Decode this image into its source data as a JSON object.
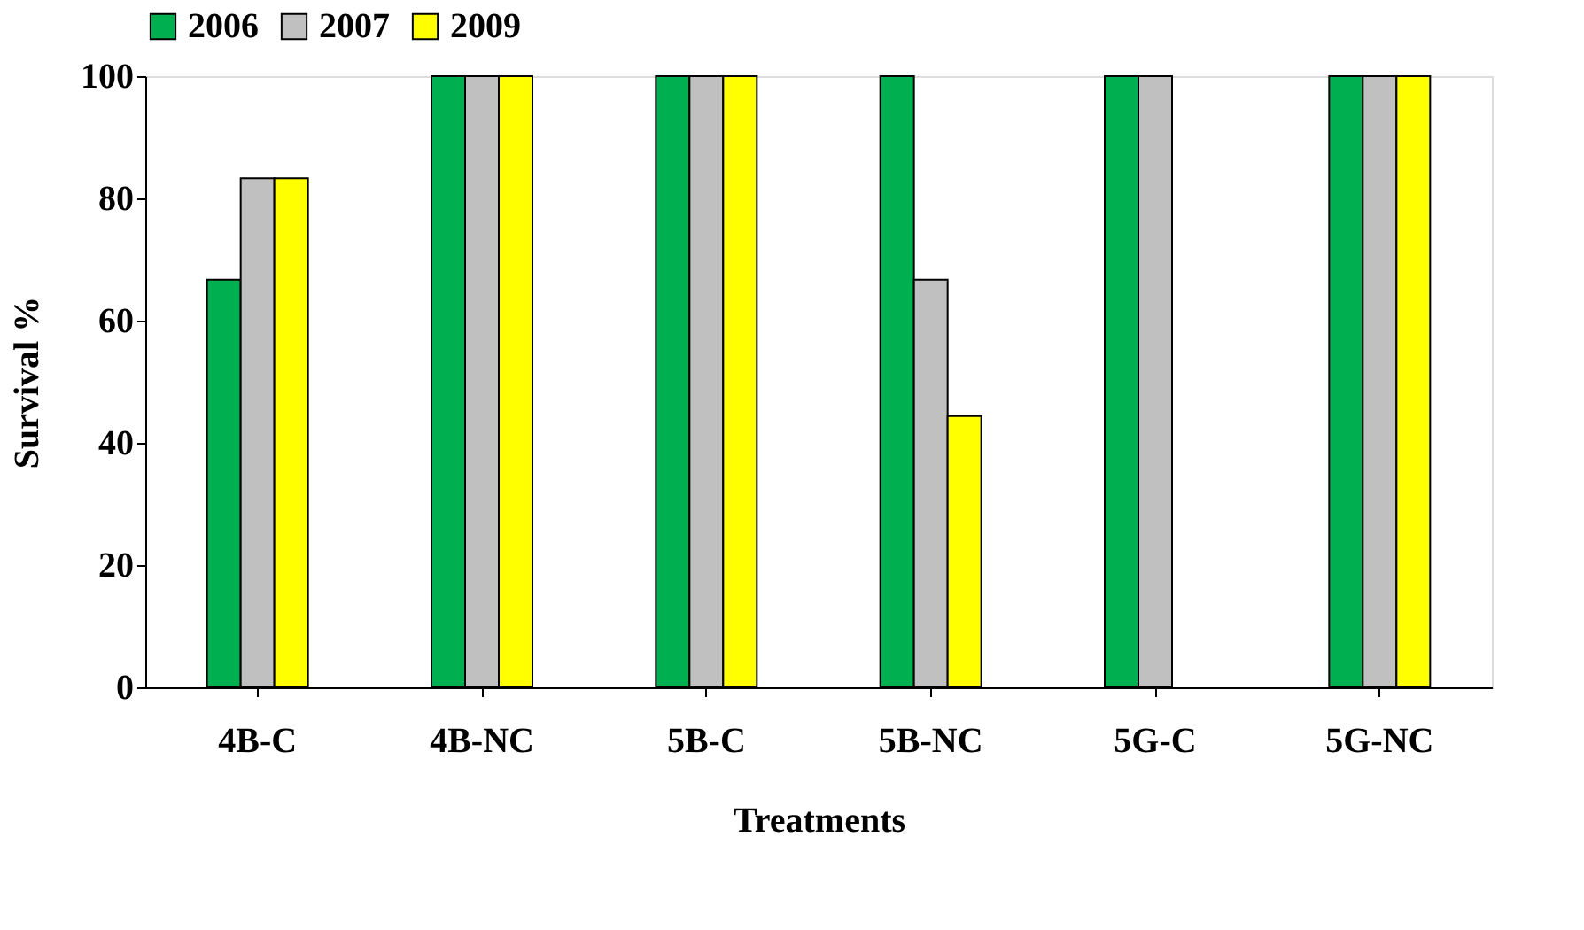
{
  "chart_data": {
    "type": "bar",
    "xlabel": "Treatments",
    "ylabel": "Survival %",
    "categories": [
      "4B-C",
      "4B-NC",
      "5B-C",
      "5B-NC",
      "5G-C",
      "5G-NC"
    ],
    "series": [
      {
        "name": "2006",
        "color": "#00b050",
        "values": [
          66.7,
          100,
          100,
          100,
          100,
          100
        ]
      },
      {
        "name": "2007",
        "color": "#c0c0c0",
        "values": [
          83.3,
          100,
          100,
          66.7,
          100,
          100
        ]
      },
      {
        "name": "2009",
        "color": "#ffff00",
        "values": [
          83.3,
          100,
          100,
          44.4,
          null,
          100
        ]
      }
    ],
    "ylim": [
      0,
      100
    ],
    "yticks": [
      0,
      20,
      40,
      60,
      80,
      100
    ],
    "grid": false,
    "legend": "top"
  }
}
